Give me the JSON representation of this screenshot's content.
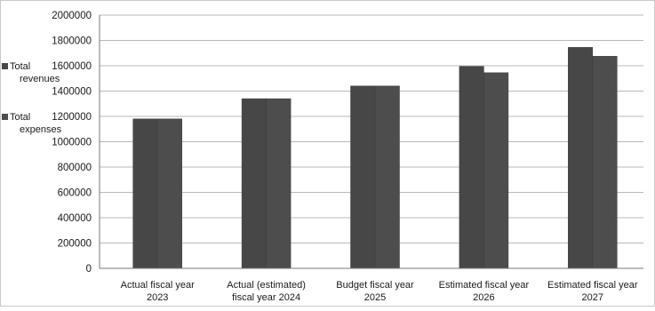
{
  "chart_data": {
    "type": "bar",
    "categories": [
      [
        "Actual fiscal year",
        "2023"
      ],
      [
        "Actual (estimated)",
        "fiscal year 2024"
      ],
      [
        "Budget fiscal year",
        "2025"
      ],
      [
        "Estimated fiscal year",
        "2026"
      ],
      [
        "Estimated fiscal year",
        "2027"
      ]
    ],
    "series": [
      {
        "name": "Total revenues",
        "values": [
          1180000,
          1340000,
          1440000,
          1595000,
          1745000
        ]
      },
      {
        "name": "Total expenses",
        "values": [
          1180000,
          1340000,
          1440000,
          1545000,
          1675000
        ]
      }
    ],
    "y_ticks": [
      "2000000",
      "1800000",
      "1600000",
      "1400000",
      "1200000",
      "1000000",
      "800000",
      "600000",
      "400000",
      "200000",
      "0"
    ],
    "ylim": [
      0,
      2000000
    ],
    "grid": true,
    "legend_position": "left",
    "colors": {
      "revenues": "#474747",
      "expenses": "#4d4d4d",
      "grid": "#b8b8b8",
      "axis": "#7a7a7a"
    }
  }
}
